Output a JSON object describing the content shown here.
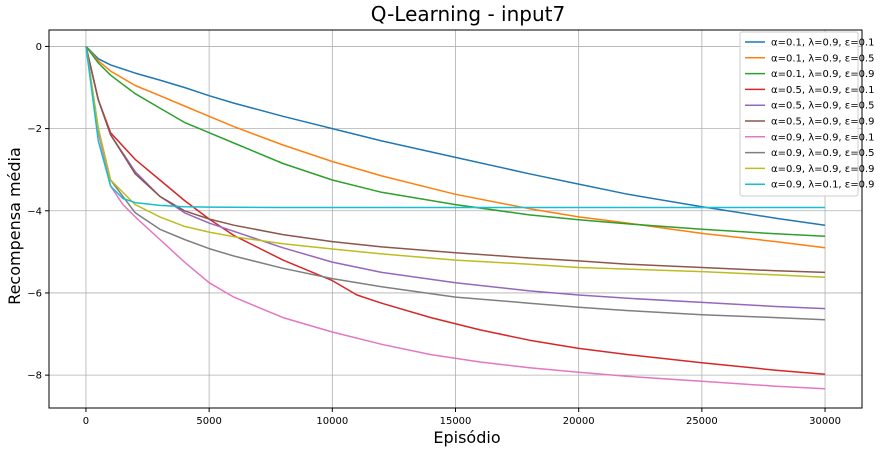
{
  "chart_data": {
    "type": "line",
    "title": "Q-Learning - input7",
    "xlabel": "Episódio",
    "ylabel": "Recompensa média",
    "xlim": [
      -1500,
      31500
    ],
    "ylim": [
      -8.8,
      0.4
    ],
    "xticks": [
      0,
      5000,
      10000,
      15000,
      20000,
      25000,
      30000
    ],
    "xtick_labels": [
      "0",
      "5000",
      "10000",
      "15000",
      "20000",
      "25000",
      "30000"
    ],
    "yticks": [
      0,
      -2,
      -4,
      -6,
      -8
    ],
    "ytick_labels": [
      "0",
      "−2",
      "−4",
      "−6",
      "−8"
    ],
    "grid": true,
    "legend_position": "top-right",
    "series": [
      {
        "name": "α=0.1, λ=0.9, ε=0.1",
        "color": "#1f77b4",
        "x": [
          0,
          500,
          1000,
          2000,
          3000,
          4000,
          5000,
          6000,
          8000,
          10000,
          12000,
          15000,
          18000,
          20000,
          22000,
          25000,
          28000,
          30000
        ],
        "y": [
          0,
          -0.3,
          -0.45,
          -0.65,
          -0.82,
          -1.0,
          -1.2,
          -1.38,
          -1.7,
          -2.0,
          -2.3,
          -2.7,
          -3.1,
          -3.35,
          -3.6,
          -3.9,
          -4.18,
          -4.35
        ]
      },
      {
        "name": "α=0.1, λ=0.9, ε=0.5",
        "color": "#ff7f0e",
        "x": [
          0,
          500,
          1000,
          2000,
          3000,
          4000,
          5000,
          6000,
          8000,
          10000,
          12000,
          15000,
          18000,
          20000,
          22000,
          25000,
          28000,
          30000
        ],
        "y": [
          0,
          -0.35,
          -0.6,
          -0.95,
          -1.2,
          -1.45,
          -1.7,
          -1.95,
          -2.4,
          -2.8,
          -3.15,
          -3.6,
          -3.95,
          -4.15,
          -4.3,
          -4.55,
          -4.75,
          -4.9
        ]
      },
      {
        "name": "α=0.1, λ=0.9, ε=0.9",
        "color": "#2ca02c",
        "x": [
          0,
          500,
          1000,
          2000,
          3000,
          4000,
          5000,
          6000,
          8000,
          10000,
          12000,
          15000,
          18000,
          20000,
          22000,
          25000,
          28000,
          30000
        ],
        "y": [
          0,
          -0.4,
          -0.7,
          -1.15,
          -1.5,
          -1.85,
          -2.1,
          -2.35,
          -2.85,
          -3.25,
          -3.55,
          -3.85,
          -4.1,
          -4.22,
          -4.32,
          -4.45,
          -4.56,
          -4.62
        ]
      },
      {
        "name": "α=0.5, λ=0.9, ε=0.1",
        "color": "#d62728",
        "x": [
          0,
          500,
          1000,
          2000,
          3000,
          4000,
          5000,
          6000,
          8000,
          10000,
          11000,
          12000,
          14000,
          16000,
          18000,
          20000,
          22000,
          25000,
          28000,
          30000
        ],
        "y": [
          0,
          -1.3,
          -2.1,
          -2.75,
          -3.25,
          -3.75,
          -4.2,
          -4.6,
          -5.2,
          -5.7,
          -6.05,
          -6.25,
          -6.6,
          -6.9,
          -7.15,
          -7.35,
          -7.5,
          -7.7,
          -7.88,
          -7.98
        ]
      },
      {
        "name": "α=0.5, λ=0.9, ε=0.5",
        "color": "#9467bd",
        "x": [
          0,
          500,
          1000,
          2000,
          3000,
          4000,
          5000,
          6000,
          8000,
          10000,
          12000,
          15000,
          18000,
          20000,
          22000,
          25000,
          28000,
          30000
        ],
        "y": [
          0,
          -1.3,
          -2.15,
          -3.05,
          -3.65,
          -4.05,
          -4.3,
          -4.5,
          -4.9,
          -5.25,
          -5.5,
          -5.75,
          -5.95,
          -6.05,
          -6.13,
          -6.23,
          -6.33,
          -6.38
        ]
      },
      {
        "name": "α=0.5, λ=0.9, ε=0.9",
        "color": "#8c564b",
        "x": [
          0,
          500,
          1000,
          2000,
          3000,
          4000,
          5000,
          6000,
          8000,
          10000,
          12000,
          15000,
          18000,
          20000,
          22000,
          25000,
          28000,
          30000
        ],
        "y": [
          0,
          -1.3,
          -2.15,
          -3.1,
          -3.65,
          -4.0,
          -4.2,
          -4.35,
          -4.58,
          -4.75,
          -4.88,
          -5.02,
          -5.15,
          -5.22,
          -5.3,
          -5.38,
          -5.46,
          -5.5
        ]
      },
      {
        "name": "α=0.9, λ=0.9, ε=0.1",
        "color": "#e377c2",
        "x": [
          0,
          500,
          1000,
          1500,
          2000,
          3000,
          4000,
          5000,
          6000,
          8000,
          10000,
          12000,
          14000,
          16000,
          18000,
          20000,
          22000,
          25000,
          28000,
          30000
        ],
        "y": [
          0,
          -2.1,
          -3.4,
          -3.85,
          -4.15,
          -4.7,
          -5.25,
          -5.75,
          -6.1,
          -6.6,
          -6.95,
          -7.25,
          -7.5,
          -7.68,
          -7.82,
          -7.93,
          -8.03,
          -8.15,
          -8.27,
          -8.33
        ]
      },
      {
        "name": "α=0.9, λ=0.9, ε=0.5",
        "color": "#7f7f7f",
        "x": [
          0,
          500,
          1000,
          2000,
          3000,
          4000,
          5000,
          6000,
          8000,
          10000,
          12000,
          15000,
          18000,
          20000,
          22000,
          25000,
          28000,
          30000
        ],
        "y": [
          0,
          -2.0,
          -3.25,
          -4.05,
          -4.45,
          -4.7,
          -4.92,
          -5.1,
          -5.4,
          -5.65,
          -5.85,
          -6.1,
          -6.25,
          -6.35,
          -6.43,
          -6.53,
          -6.6,
          -6.65
        ]
      },
      {
        "name": "α=0.9, λ=0.9, ε=0.9",
        "color": "#bcbd22",
        "x": [
          0,
          500,
          1000,
          2000,
          3000,
          4000,
          5000,
          6000,
          8000,
          10000,
          12000,
          15000,
          18000,
          20000,
          22000,
          25000,
          28000,
          30000
        ],
        "y": [
          0,
          -2.0,
          -3.25,
          -3.85,
          -4.15,
          -4.38,
          -4.52,
          -4.63,
          -4.8,
          -4.93,
          -5.05,
          -5.2,
          -5.3,
          -5.38,
          -5.42,
          -5.48,
          -5.56,
          -5.62
        ]
      },
      {
        "name": "α=0.9, λ=0.1, ε=0.9",
        "color": "#17becf",
        "x": [
          0,
          500,
          1000,
          1500,
          2000,
          3000,
          4000,
          5000,
          8000,
          10000,
          15000,
          20000,
          25000,
          30000
        ],
        "y": [
          0,
          -2.3,
          -3.4,
          -3.7,
          -3.8,
          -3.87,
          -3.9,
          -3.91,
          -3.92,
          -3.92,
          -3.92,
          -3.92,
          -3.92,
          -3.92
        ]
      }
    ]
  }
}
